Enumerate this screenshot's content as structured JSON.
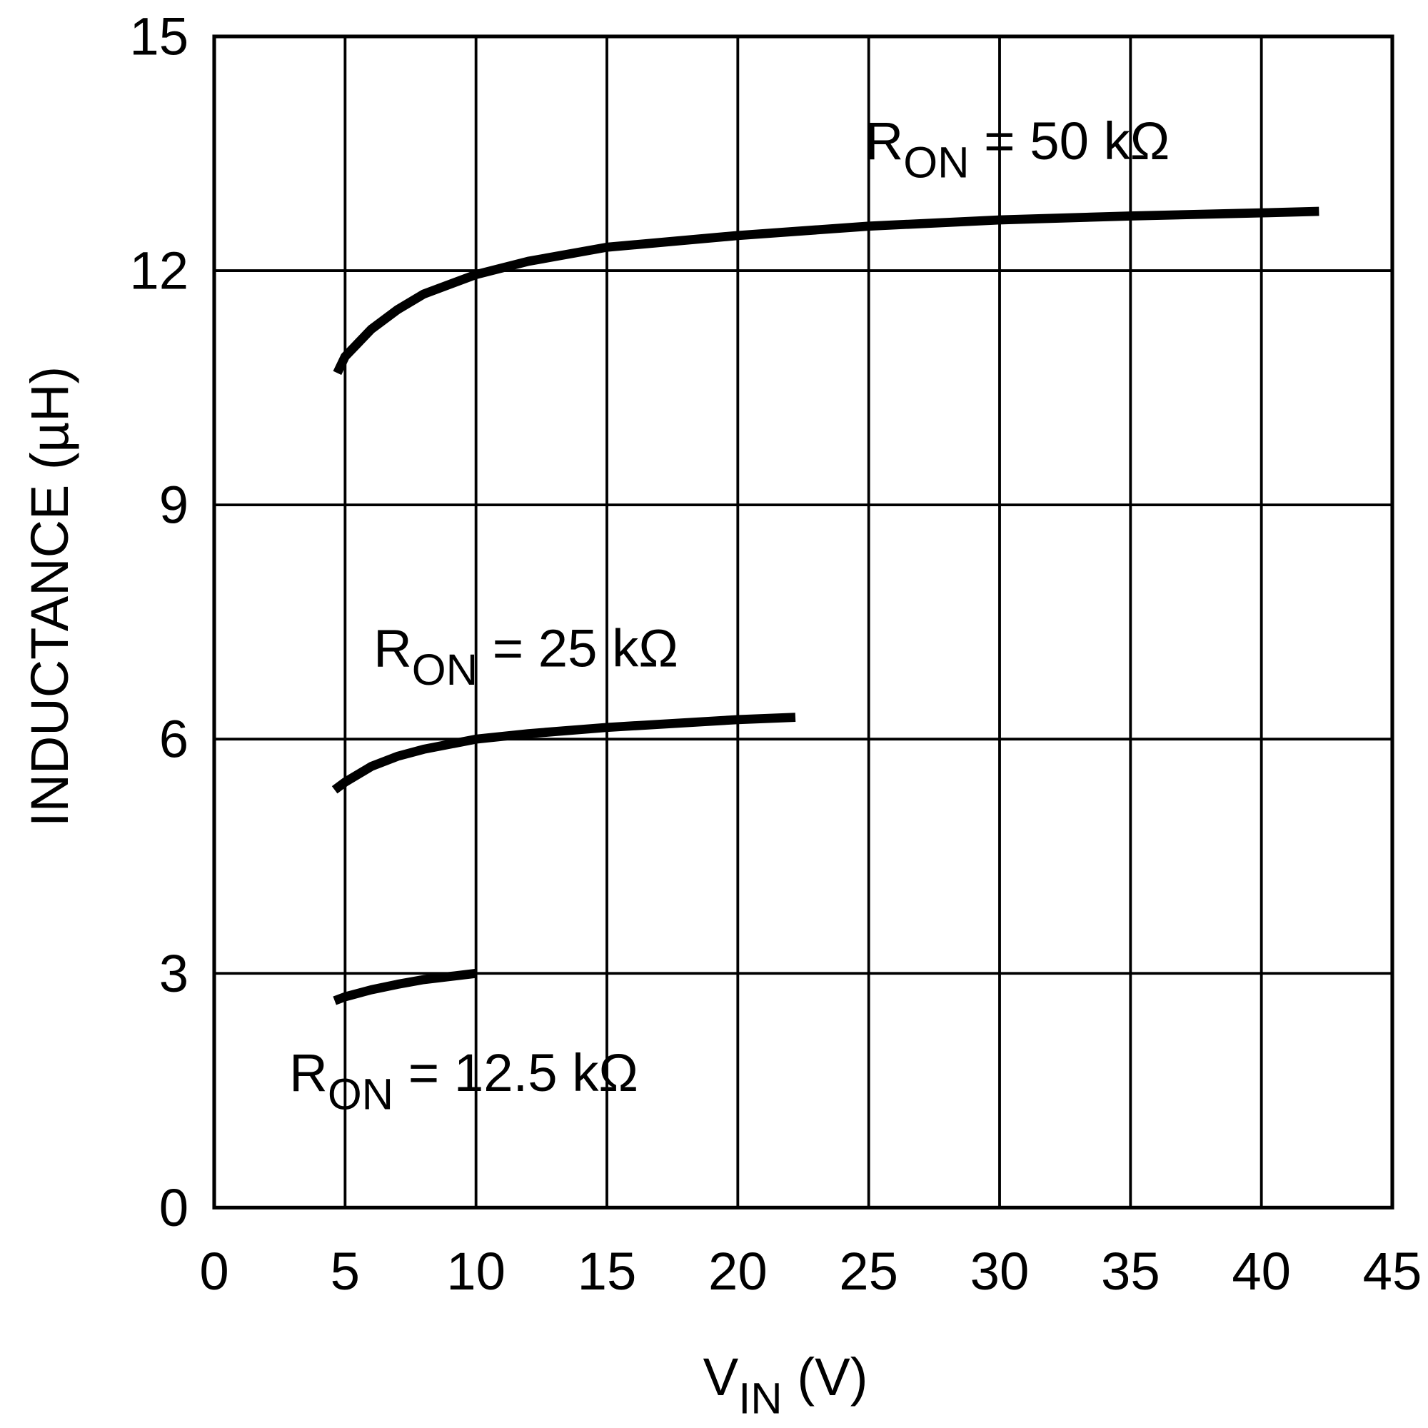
{
  "chart_data": {
    "type": "line",
    "title": "",
    "xlabel": "V",
    "xlabel_sub": "IN",
    "xlabel_suffix": " (V)",
    "ylabel": "INDUCTANCE (µH)",
    "xlim": [
      0,
      45
    ],
    "ylim": [
      0,
      15
    ],
    "xticks": [
      0,
      5,
      10,
      15,
      20,
      25,
      30,
      35,
      40,
      45
    ],
    "yticks": [
      0,
      3,
      6,
      9,
      12,
      15
    ],
    "grid": true,
    "line_color": "#000000",
    "series": [
      {
        "name": "RON = 50 kΩ",
        "label_main": "R",
        "label_sub": "ON",
        "label_rest": " = 50 kΩ",
        "x": [
          4.7,
          5,
          6,
          7,
          8,
          10,
          12,
          15,
          20,
          25,
          30,
          35,
          40,
          42.2
        ],
        "y": [
          10.69,
          10.9,
          11.25,
          11.5,
          11.7,
          11.95,
          12.12,
          12.3,
          12.45,
          12.57,
          12.65,
          12.7,
          12.74,
          12.76
        ]
      },
      {
        "name": "RON = 25 kΩ",
        "label_main": "R",
        "label_sub": "ON",
        "label_rest": " = 25 kΩ",
        "x": [
          4.6,
          5,
          6,
          7,
          8,
          10,
          12,
          15,
          20,
          22.2
        ],
        "y": [
          5.35,
          5.45,
          5.65,
          5.78,
          5.87,
          6.0,
          6.07,
          6.15,
          6.25,
          6.28
        ]
      },
      {
        "name": "RON = 12.5 kΩ",
        "label_main": "R",
        "label_sub": "ON",
        "label_rest": " = 12.5 kΩ",
        "x": [
          4.6,
          5,
          6,
          7,
          8,
          9,
          10
        ],
        "y": [
          2.65,
          2.7,
          2.79,
          2.86,
          2.92,
          2.96,
          3.0
        ]
      }
    ]
  }
}
